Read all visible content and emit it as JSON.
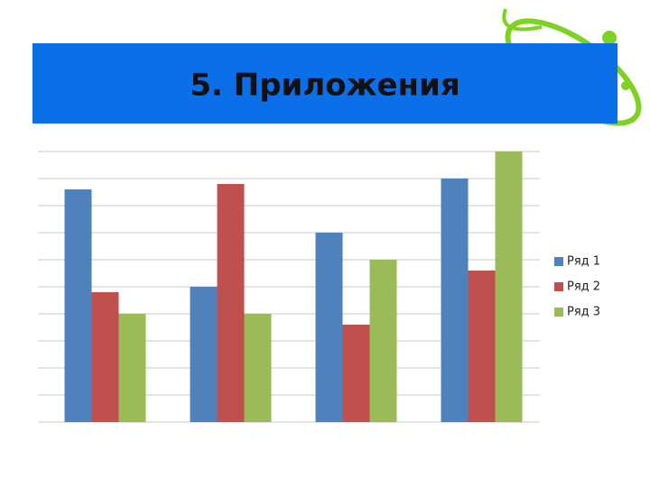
{
  "chart_data": {
    "type": "bar",
    "title": "5. Приложения",
    "categories": [
      null,
      null,
      null,
      null
    ],
    "series": [
      {
        "name": "Ряд 1",
        "color": "#4f81bd",
        "values": [
          4.3,
          2.5,
          3.5,
          4.5
        ]
      },
      {
        "name": "Ряд 2",
        "color": "#c0504d",
        "values": [
          2.4,
          4.4,
          1.8,
          2.8
        ]
      },
      {
        "name": "Ряд 3",
        "color": "#9bbb59",
        "values": [
          2,
          2,
          3,
          5
        ]
      }
    ],
    "ylim": [
      0,
      5
    ],
    "yticks": [
      0,
      0.5,
      1,
      1.5,
      2,
      2.5,
      3,
      3.5,
      4,
      4.5,
      5
    ],
    "grid": true,
    "legend": "right"
  }
}
